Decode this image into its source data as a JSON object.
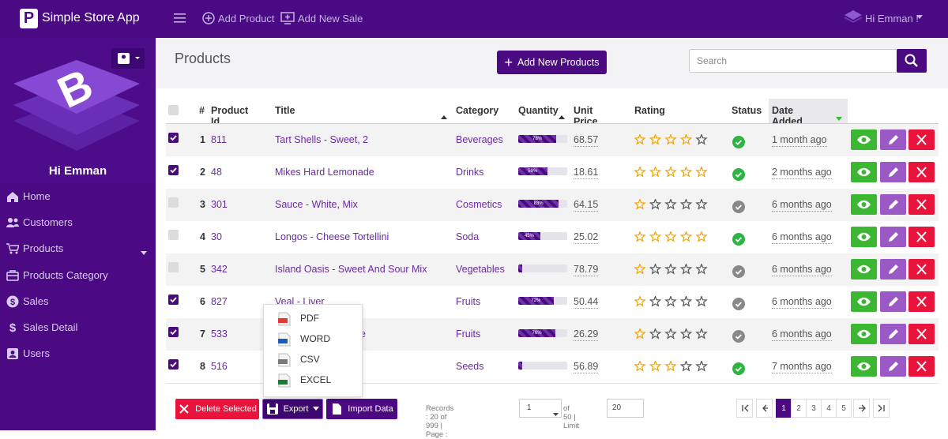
{
  "header": {
    "brand_icon": "P",
    "app_name": "Simple Store App",
    "nav": [
      "Add Product",
      "Add New Sale"
    ],
    "user": "Hi Emman !"
  },
  "sidebar": {
    "logo_letter": "B",
    "greeting": "Hi Emman",
    "menu": [
      "Home",
      "Customers",
      "Products",
      "Products Category",
      "Sales",
      "Sales Detail",
      "Users"
    ]
  },
  "page": {
    "title": "Products",
    "add_button": "Add New Products",
    "search_placeholder": "Search"
  },
  "table": {
    "columns": [
      "#",
      "Product Id",
      "Title",
      "Category",
      "Quantity",
      "Unit Price",
      "Rating",
      "Status",
      "Date Added"
    ],
    "rows": [
      {
        "selected": true,
        "number": 1,
        "product_id": 811,
        "title": "Tart Shells - Sweet, 2",
        "category": "Beverages",
        "quantity": 78,
        "quantity_label": "78%",
        "unit_price": 68.57,
        "rating": 4,
        "active": true,
        "date_added": "1 month ago"
      },
      {
        "selected": true,
        "number": 2,
        "product_id": 48,
        "title": "Mikes Hard Lemonade",
        "category": "Drinks",
        "quantity": 59,
        "quantity_label": "59%",
        "unit_price": 18.61,
        "rating": 5,
        "active": true,
        "date_added": "2 months ago"
      },
      {
        "selected": false,
        "number": 3,
        "product_id": 301,
        "title": "Sauce - White, Mix",
        "category": "Cosmetics",
        "quantity": 83,
        "quantity_label": "83%",
        "unit_price": 64.15,
        "rating": 1,
        "active": false,
        "date_added": "6 months ago"
      },
      {
        "selected": false,
        "number": 4,
        "product_id": 30,
        "title": "Longos - Cheese Tortellini",
        "category": "Soda",
        "quantity": 45,
        "quantity_label": "45%",
        "unit_price": 25.02,
        "rating": 5,
        "active": true,
        "date_added": "6 months ago"
      },
      {
        "selected": false,
        "number": 5,
        "product_id": 342,
        "title": "Island Oasis - Sweet And Sour Mix",
        "category": "Vegetables",
        "quantity": 8,
        "unit_price": 78.79,
        "rating": 1,
        "active": false,
        "date_added": "6 months ago"
      },
      {
        "selected": true,
        "number": 6,
        "product_id": 827,
        "title": "Veal - Liver",
        "category": "Fruits",
        "quantity": 72,
        "quantity_label": "72%",
        "unit_price": 50.44,
        "rating": 1,
        "active": false,
        "date_added": "6 months ago"
      },
      {
        "selected": true,
        "number": 7,
        "product_id": 533,
        "title": "e",
        "category": "Fruits",
        "quantity": 76,
        "quantity_label": "76%",
        "unit_price": 26.29,
        "rating": 1,
        "active": false,
        "date_added": "6 months ago"
      },
      {
        "selected": true,
        "number": 8,
        "product_id": 516,
        "title": "",
        "category": "Seeds",
        "quantity": 8,
        "unit_price": 56.89,
        "rating": 3,
        "active": true,
        "date_added": "7 months ago"
      }
    ]
  },
  "footer": {
    "delete_button": "Delete Selected",
    "export_button": "Export",
    "import_button": "Import Data",
    "export_menu": [
      "PDF",
      "WORD",
      "CSV",
      "EXCEL"
    ],
    "records": "Records : 20 of 999 | Page :",
    "page_select": "1",
    "pages_total": "of 50 | Limit",
    "limit": "20",
    "pagination": [
      "1",
      "2",
      "3",
      "4",
      "5"
    ],
    "active_page": 1
  }
}
